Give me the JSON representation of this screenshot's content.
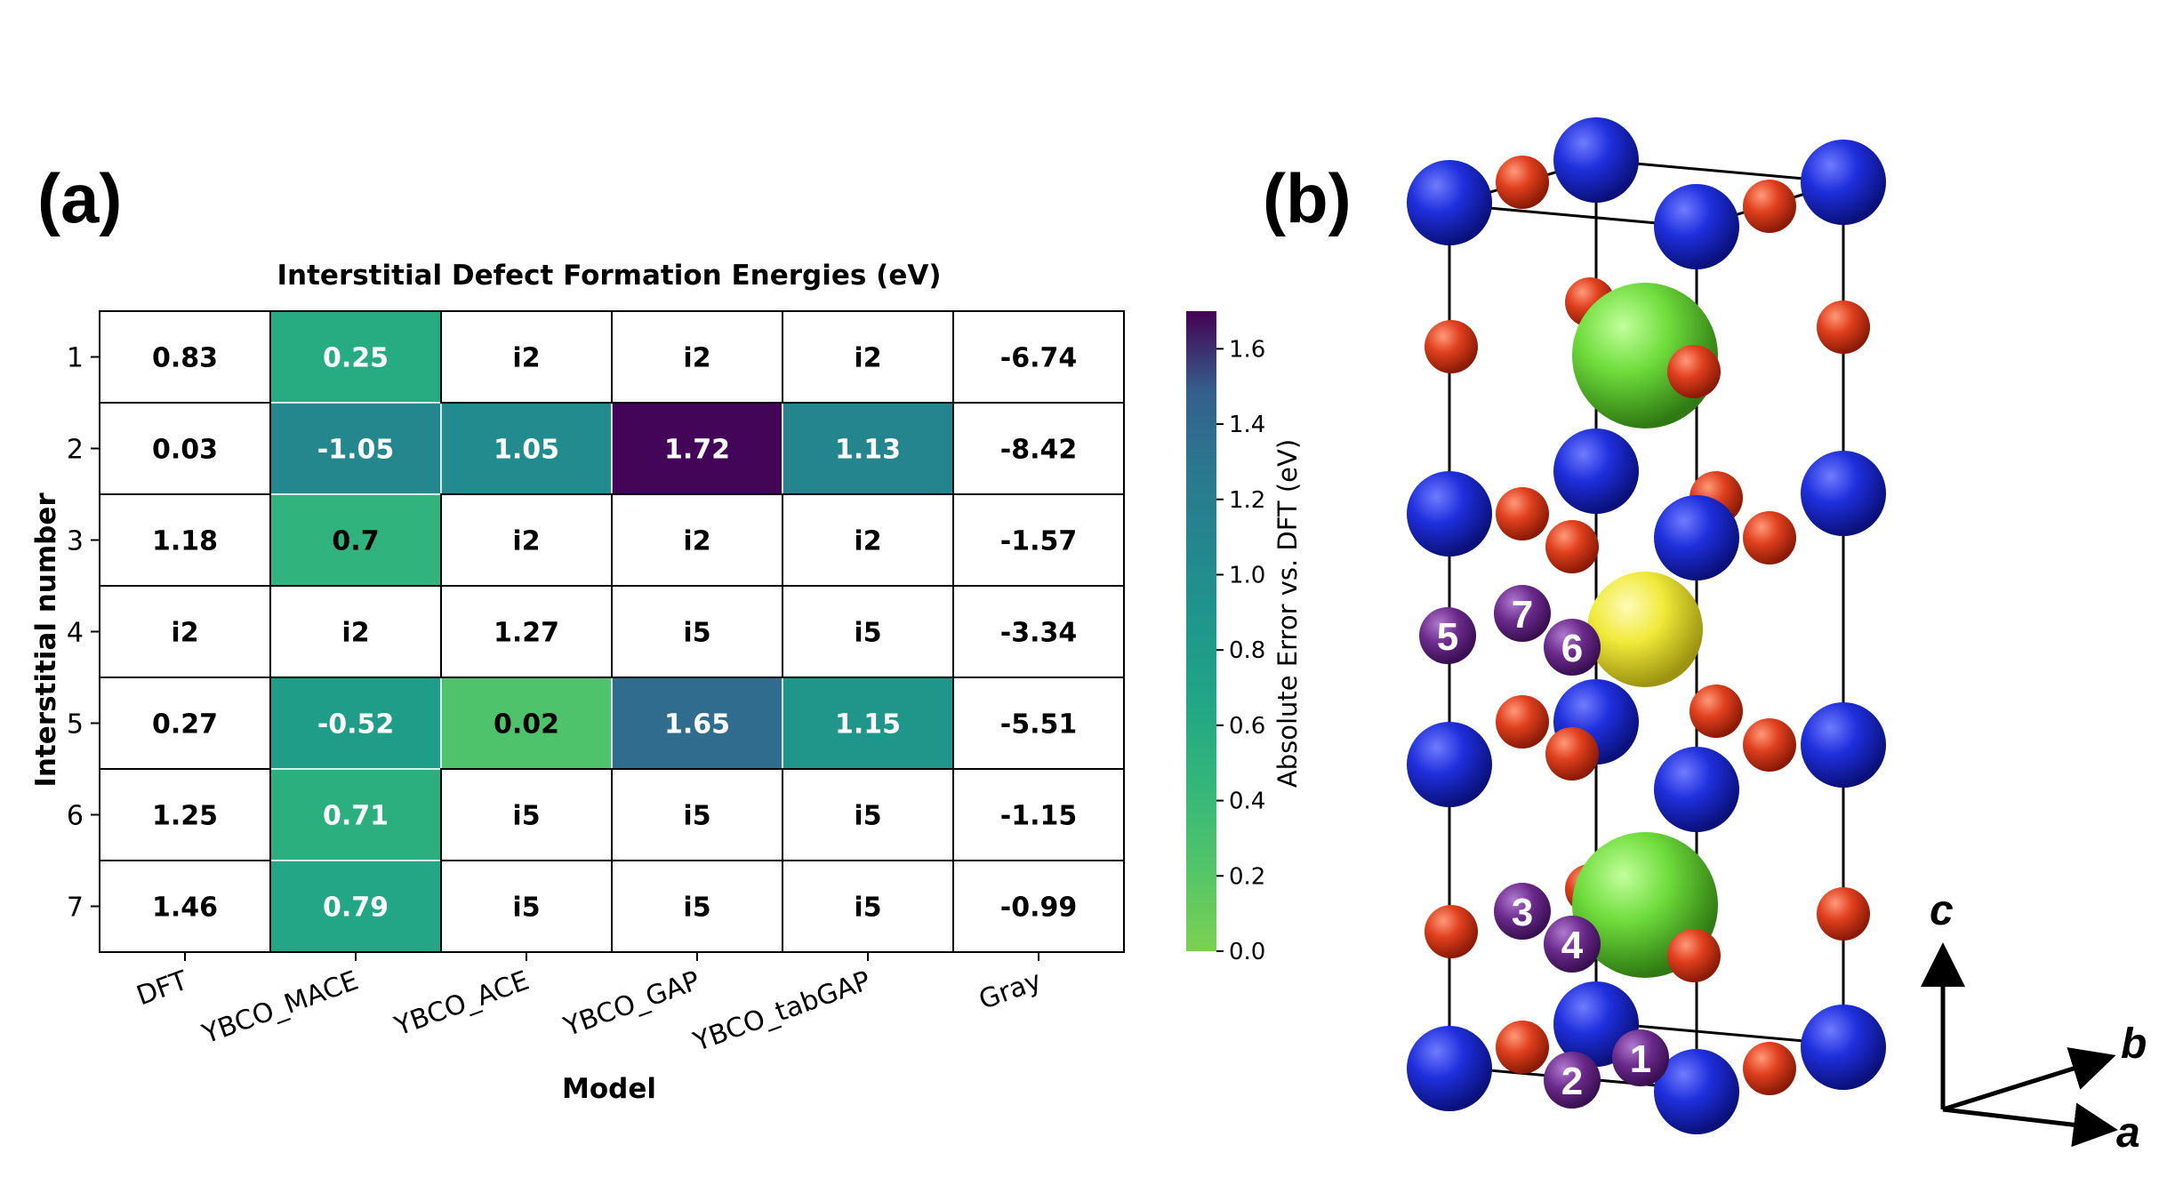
{
  "panels": {
    "a": "(a)",
    "b": "(b)"
  },
  "chart_data": {
    "type": "heatmap",
    "title": "Interstitial Defect Formation Energies (eV)",
    "xlabel": "Model",
    "ylabel": "Interstitial number",
    "columns": [
      "DFT",
      "YBCO_MACE",
      "YBCO_ACE",
      "YBCO_GAP",
      "YBCO_tabGAP",
      "Gray"
    ],
    "rows": [
      "1",
      "2",
      "3",
      "4",
      "5",
      "6",
      "7"
    ],
    "cells": [
      [
        "0.83",
        "0.25",
        "i2",
        "i2",
        "i2",
        "-6.74"
      ],
      [
        "0.03",
        "-1.05",
        "1.05",
        "1.72",
        "1.13",
        "-8.42"
      ],
      [
        "1.18",
        "0.7",
        "i2",
        "i2",
        "i2",
        "-1.57"
      ],
      [
        "i2",
        "i2",
        "1.27",
        "i5",
        "i5",
        "-3.34"
      ],
      [
        "0.27",
        "-0.52",
        "0.02",
        "1.65",
        "1.15",
        "-5.51"
      ],
      [
        "1.25",
        "0.71",
        "i5",
        "i5",
        "i5",
        "-1.15"
      ],
      [
        "1.46",
        "0.79",
        "i5",
        "i5",
        "i5",
        "-0.99"
      ]
    ],
    "abs_error": [
      [
        null,
        0.58,
        null,
        null,
        null,
        null
      ],
      [
        null,
        1.08,
        1.02,
        1.69,
        1.1,
        null
      ],
      [
        null,
        0.48,
        null,
        null,
        null,
        null
      ],
      [
        null,
        null,
        null,
        null,
        null,
        null
      ],
      [
        null,
        0.79,
        0.25,
        1.38,
        0.88,
        null
      ],
      [
        null,
        0.54,
        null,
        null,
        null,
        null
      ],
      [
        null,
        0.67,
        null,
        null,
        null,
        null
      ]
    ],
    "colorbar": {
      "label": "Absolute Error vs. DFT (eV)",
      "min": 0.0,
      "max": 1.7,
      "ticks": [
        "0.0",
        "0.2",
        "0.4",
        "0.6",
        "0.8",
        "1.0",
        "1.2",
        "1.4",
        "1.6"
      ],
      "colormap": "viridis_r"
    }
  },
  "structure": {
    "site_labels": [
      "1",
      "2",
      "3",
      "4",
      "5",
      "6",
      "7"
    ],
    "axes": {
      "c": "c",
      "b": "b",
      "a": "a"
    },
    "colors": {
      "cu": "#1f2fdc",
      "o": "#e0401e",
      "y": "#f0ea3a",
      "ba": "#6fdc3c",
      "site": "#6a2a8a"
    }
  }
}
